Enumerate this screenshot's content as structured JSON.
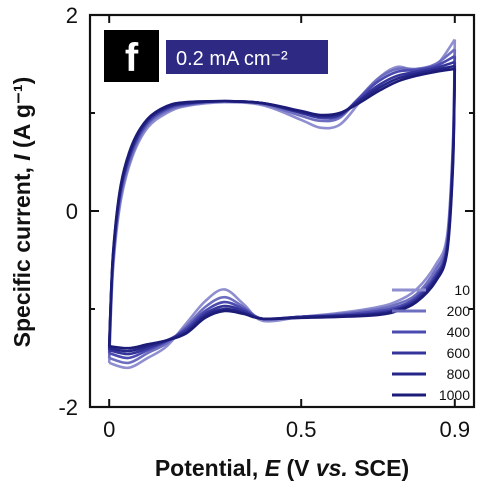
{
  "chart_data": {
    "type": "line",
    "panel_label": "f",
    "annotation": "0.2 mA cm⁻²",
    "xlabel": {
      "prefix": "Potential, ",
      "italic": "E",
      "mid": " (V ",
      "italic2": "vs.",
      "suffix": " SCE)"
    },
    "ylabel": {
      "prefix": "Specific current, ",
      "italic": "I",
      "suffix": " (A g⁻¹)"
    },
    "xlim": [
      -0.05,
      0.95
    ],
    "ylim": [
      -2,
      2
    ],
    "xticks": [
      {
        "value": 0,
        "label": "0"
      },
      {
        "value": 0.5,
        "label": "0.5"
      },
      {
        "value": 0.9,
        "label": "0.9"
      }
    ],
    "yticks": [
      {
        "value": 2,
        "label": "2"
      },
      {
        "value": 0,
        "label": "0"
      },
      {
        "value": -2,
        "label": "-2"
      }
    ],
    "minor_yticks": [
      1,
      -1
    ],
    "legend_position": "bottom-right",
    "series": [
      {
        "name": "10",
        "color": "#8e8ed0",
        "upper": [
          [
            0,
            -1.55
          ],
          [
            0.01,
            -0.6
          ],
          [
            0.03,
            0.1
          ],
          [
            0.06,
            0.55
          ],
          [
            0.1,
            0.85
          ],
          [
            0.15,
            1.0
          ],
          [
            0.2,
            1.07
          ],
          [
            0.3,
            1.11
          ],
          [
            0.4,
            1.08
          ],
          [
            0.5,
            0.93
          ],
          [
            0.55,
            0.85
          ],
          [
            0.6,
            0.88
          ],
          [
            0.65,
            1.1
          ],
          [
            0.7,
            1.35
          ],
          [
            0.75,
            1.47
          ],
          [
            0.8,
            1.43
          ],
          [
            0.85,
            1.48
          ],
          [
            0.9,
            1.75
          ]
        ],
        "lower": [
          [
            0.9,
            1.75
          ],
          [
            0.895,
            0.7
          ],
          [
            0.88,
            -0.25
          ],
          [
            0.85,
            -0.55
          ],
          [
            0.8,
            -0.8
          ],
          [
            0.75,
            -0.92
          ],
          [
            0.7,
            -0.98
          ],
          [
            0.6,
            -1.04
          ],
          [
            0.5,
            -1.08
          ],
          [
            0.4,
            -1.12
          ],
          [
            0.35,
            -0.95
          ],
          [
            0.3,
            -0.8
          ],
          [
            0.25,
            -0.92
          ],
          [
            0.2,
            -1.15
          ],
          [
            0.15,
            -1.38
          ],
          [
            0.1,
            -1.5
          ],
          [
            0.05,
            -1.6
          ],
          [
            0,
            -1.55
          ]
        ]
      },
      {
        "name": "200",
        "color": "#6e6ec0",
        "upper": [
          [
            0,
            -1.5
          ],
          [
            0.01,
            -0.55
          ],
          [
            0.03,
            0.15
          ],
          [
            0.06,
            0.58
          ],
          [
            0.1,
            0.88
          ],
          [
            0.15,
            1.02
          ],
          [
            0.2,
            1.08
          ],
          [
            0.3,
            1.12
          ],
          [
            0.4,
            1.09
          ],
          [
            0.5,
            0.97
          ],
          [
            0.55,
            0.92
          ],
          [
            0.6,
            0.95
          ],
          [
            0.65,
            1.15
          ],
          [
            0.7,
            1.35
          ],
          [
            0.75,
            1.45
          ],
          [
            0.8,
            1.45
          ],
          [
            0.85,
            1.5
          ],
          [
            0.9,
            1.65
          ]
        ],
        "lower": [
          [
            0.9,
            1.65
          ],
          [
            0.895,
            0.65
          ],
          [
            0.88,
            -0.3
          ],
          [
            0.85,
            -0.6
          ],
          [
            0.8,
            -0.85
          ],
          [
            0.75,
            -0.95
          ],
          [
            0.7,
            -1.0
          ],
          [
            0.6,
            -1.05
          ],
          [
            0.5,
            -1.08
          ],
          [
            0.4,
            -1.1
          ],
          [
            0.35,
            -0.98
          ],
          [
            0.3,
            -0.88
          ],
          [
            0.25,
            -0.98
          ],
          [
            0.2,
            -1.18
          ],
          [
            0.15,
            -1.35
          ],
          [
            0.1,
            -1.45
          ],
          [
            0.05,
            -1.55
          ],
          [
            0,
            -1.5
          ]
        ]
      },
      {
        "name": "400",
        "color": "#4a4ab0",
        "upper": [
          [
            0,
            -1.45
          ],
          [
            0.01,
            -0.5
          ],
          [
            0.03,
            0.2
          ],
          [
            0.06,
            0.62
          ],
          [
            0.1,
            0.9
          ],
          [
            0.15,
            1.04
          ],
          [
            0.2,
            1.09
          ],
          [
            0.3,
            1.12
          ],
          [
            0.4,
            1.1
          ],
          [
            0.5,
            1.0
          ],
          [
            0.55,
            0.95
          ],
          [
            0.6,
            0.97
          ],
          [
            0.65,
            1.15
          ],
          [
            0.7,
            1.32
          ],
          [
            0.75,
            1.42
          ],
          [
            0.8,
            1.44
          ],
          [
            0.85,
            1.48
          ],
          [
            0.9,
            1.58
          ]
        ],
        "lower": [
          [
            0.9,
            1.58
          ],
          [
            0.895,
            0.6
          ],
          [
            0.88,
            -0.35
          ],
          [
            0.85,
            -0.65
          ],
          [
            0.8,
            -0.88
          ],
          [
            0.75,
            -0.98
          ],
          [
            0.7,
            -1.02
          ],
          [
            0.6,
            -1.06
          ],
          [
            0.5,
            -1.08
          ],
          [
            0.4,
            -1.1
          ],
          [
            0.35,
            -1.0
          ],
          [
            0.3,
            -0.93
          ],
          [
            0.25,
            -1.02
          ],
          [
            0.2,
            -1.2
          ],
          [
            0.15,
            -1.33
          ],
          [
            0.1,
            -1.42
          ],
          [
            0.05,
            -1.5
          ],
          [
            0,
            -1.45
          ]
        ]
      },
      {
        "name": "600",
        "color": "#34349a",
        "upper": [
          [
            0,
            -1.42
          ],
          [
            0.01,
            -0.48
          ],
          [
            0.03,
            0.22
          ],
          [
            0.06,
            0.64
          ],
          [
            0.1,
            0.92
          ],
          [
            0.15,
            1.05
          ],
          [
            0.2,
            1.1
          ],
          [
            0.3,
            1.12
          ],
          [
            0.4,
            1.1
          ],
          [
            0.5,
            1.0
          ],
          [
            0.55,
            0.96
          ],
          [
            0.6,
            0.98
          ],
          [
            0.65,
            1.13
          ],
          [
            0.7,
            1.28
          ],
          [
            0.75,
            1.38
          ],
          [
            0.8,
            1.42
          ],
          [
            0.85,
            1.46
          ],
          [
            0.9,
            1.52
          ]
        ],
        "lower": [
          [
            0.9,
            1.52
          ],
          [
            0.895,
            0.55
          ],
          [
            0.88,
            -0.38
          ],
          [
            0.85,
            -0.68
          ],
          [
            0.8,
            -0.9
          ],
          [
            0.75,
            -1.0
          ],
          [
            0.7,
            -1.04
          ],
          [
            0.6,
            -1.07
          ],
          [
            0.5,
            -1.08
          ],
          [
            0.4,
            -1.1
          ],
          [
            0.35,
            -1.02
          ],
          [
            0.3,
            -0.97
          ],
          [
            0.25,
            -1.05
          ],
          [
            0.2,
            -1.22
          ],
          [
            0.15,
            -1.32
          ],
          [
            0.1,
            -1.4
          ],
          [
            0.05,
            -1.46
          ],
          [
            0,
            -1.42
          ]
        ]
      },
      {
        "name": "800",
        "color": "#26268a",
        "upper": [
          [
            0,
            -1.4
          ],
          [
            0.01,
            -0.46
          ],
          [
            0.03,
            0.24
          ],
          [
            0.06,
            0.66
          ],
          [
            0.1,
            0.93
          ],
          [
            0.15,
            1.06
          ],
          [
            0.2,
            1.1
          ],
          [
            0.3,
            1.12
          ],
          [
            0.4,
            1.1
          ],
          [
            0.5,
            1.01
          ],
          [
            0.55,
            0.97
          ],
          [
            0.6,
            0.99
          ],
          [
            0.65,
            1.12
          ],
          [
            0.7,
            1.25
          ],
          [
            0.75,
            1.35
          ],
          [
            0.8,
            1.4
          ],
          [
            0.85,
            1.44
          ],
          [
            0.9,
            1.48
          ]
        ],
        "lower": [
          [
            0.9,
            1.48
          ],
          [
            0.895,
            0.5
          ],
          [
            0.88,
            -0.4
          ],
          [
            0.85,
            -0.7
          ],
          [
            0.8,
            -0.92
          ],
          [
            0.75,
            -1.01
          ],
          [
            0.7,
            -1.05
          ],
          [
            0.6,
            -1.07
          ],
          [
            0.5,
            -1.08
          ],
          [
            0.4,
            -1.1
          ],
          [
            0.35,
            -1.04
          ],
          [
            0.3,
            -1.0
          ],
          [
            0.25,
            -1.07
          ],
          [
            0.2,
            -1.24
          ],
          [
            0.15,
            -1.32
          ],
          [
            0.1,
            -1.38
          ],
          [
            0.05,
            -1.43
          ],
          [
            0,
            -1.4
          ]
        ]
      },
      {
        "name": "1000",
        "color": "#1c1c78",
        "upper": [
          [
            0,
            -1.38
          ],
          [
            0.01,
            -0.44
          ],
          [
            0.03,
            0.26
          ],
          [
            0.06,
            0.68
          ],
          [
            0.1,
            0.94
          ],
          [
            0.15,
            1.07
          ],
          [
            0.2,
            1.11
          ],
          [
            0.3,
            1.12
          ],
          [
            0.4,
            1.1
          ],
          [
            0.5,
            1.02
          ],
          [
            0.55,
            0.98
          ],
          [
            0.6,
            1.0
          ],
          [
            0.65,
            1.1
          ],
          [
            0.7,
            1.22
          ],
          [
            0.75,
            1.32
          ],
          [
            0.8,
            1.38
          ],
          [
            0.85,
            1.42
          ],
          [
            0.9,
            1.45
          ]
        ],
        "lower": [
          [
            0.9,
            1.45
          ],
          [
            0.895,
            0.45
          ],
          [
            0.88,
            -0.42
          ],
          [
            0.85,
            -0.72
          ],
          [
            0.8,
            -0.93
          ],
          [
            0.75,
            -1.02
          ],
          [
            0.7,
            -1.06
          ],
          [
            0.6,
            -1.08
          ],
          [
            0.5,
            -1.09
          ],
          [
            0.4,
            -1.1
          ],
          [
            0.35,
            -1.05
          ],
          [
            0.3,
            -1.02
          ],
          [
            0.25,
            -1.09
          ],
          [
            0.2,
            -1.25
          ],
          [
            0.15,
            -1.32
          ],
          [
            0.1,
            -1.36
          ],
          [
            0.05,
            -1.4
          ],
          [
            0,
            -1.38
          ]
        ]
      }
    ]
  }
}
